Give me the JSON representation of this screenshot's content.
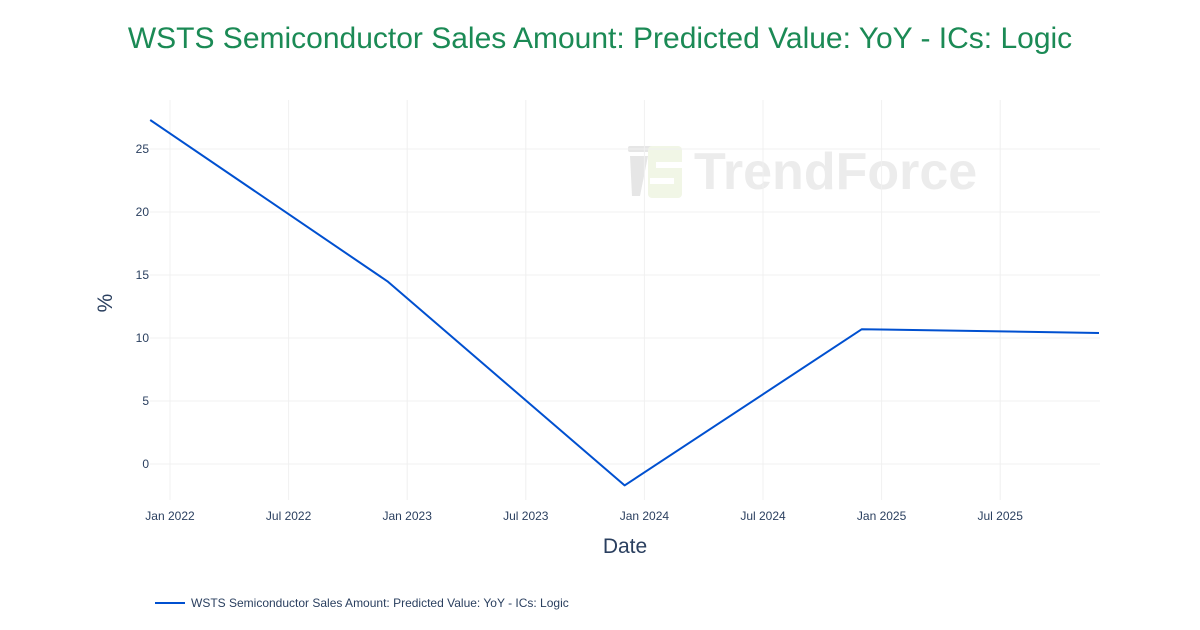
{
  "title": "WSTS Semiconductor Sales Amount: Predicted Value: YoY - ICs: Logic",
  "watermark": {
    "text": "TrendForce",
    "icon": "trendforce-logo-icon"
  },
  "axes": {
    "x_title": "Date",
    "y_title": "%",
    "x_ticks": [
      "Jan 2022",
      "Jul 2022",
      "Jan 2023",
      "Jul 2023",
      "Jan 2024",
      "Jul 2024",
      "Jan 2025",
      "Jul 2025"
    ],
    "y_ticks": [
      "0",
      "5",
      "10",
      "15",
      "20",
      "25"
    ]
  },
  "legend": {
    "label": "WSTS Semiconductor Sales Amount: Predicted Value: YoY - ICs: Logic",
    "color": "#0050d0"
  },
  "colors": {
    "title": "#1b8a55",
    "line": "#0050d0",
    "grid": "#f0f0f0",
    "text": "#2a3f5f"
  },
  "chart_data": {
    "type": "line",
    "title": "WSTS Semiconductor Sales Amount: Predicted Value: YoY - ICs: Logic",
    "xlabel": "Date",
    "ylabel": "%",
    "x": [
      "2021-12",
      "2022-12",
      "2023-12",
      "2024-12",
      "2025-12"
    ],
    "series": [
      {
        "name": "WSTS Semiconductor Sales Amount: Predicted Value: YoY - ICs: Logic",
        "values": [
          27.3,
          14.5,
          -1.7,
          10.7,
          10.4
        ],
        "color": "#0050d0"
      }
    ],
    "x_tick_labels": [
      "Jan 2022",
      "Jul 2022",
      "Jan 2023",
      "Jul 2023",
      "Jan 2024",
      "Jul 2024",
      "Jan 2025",
      "Jul 2025"
    ],
    "y_tick_labels": [
      "0",
      "5",
      "10",
      "15",
      "20",
      "25"
    ],
    "ylim": [
      -2.9,
      29.0
    ],
    "grid": true,
    "legend_position": "bottom-left"
  }
}
